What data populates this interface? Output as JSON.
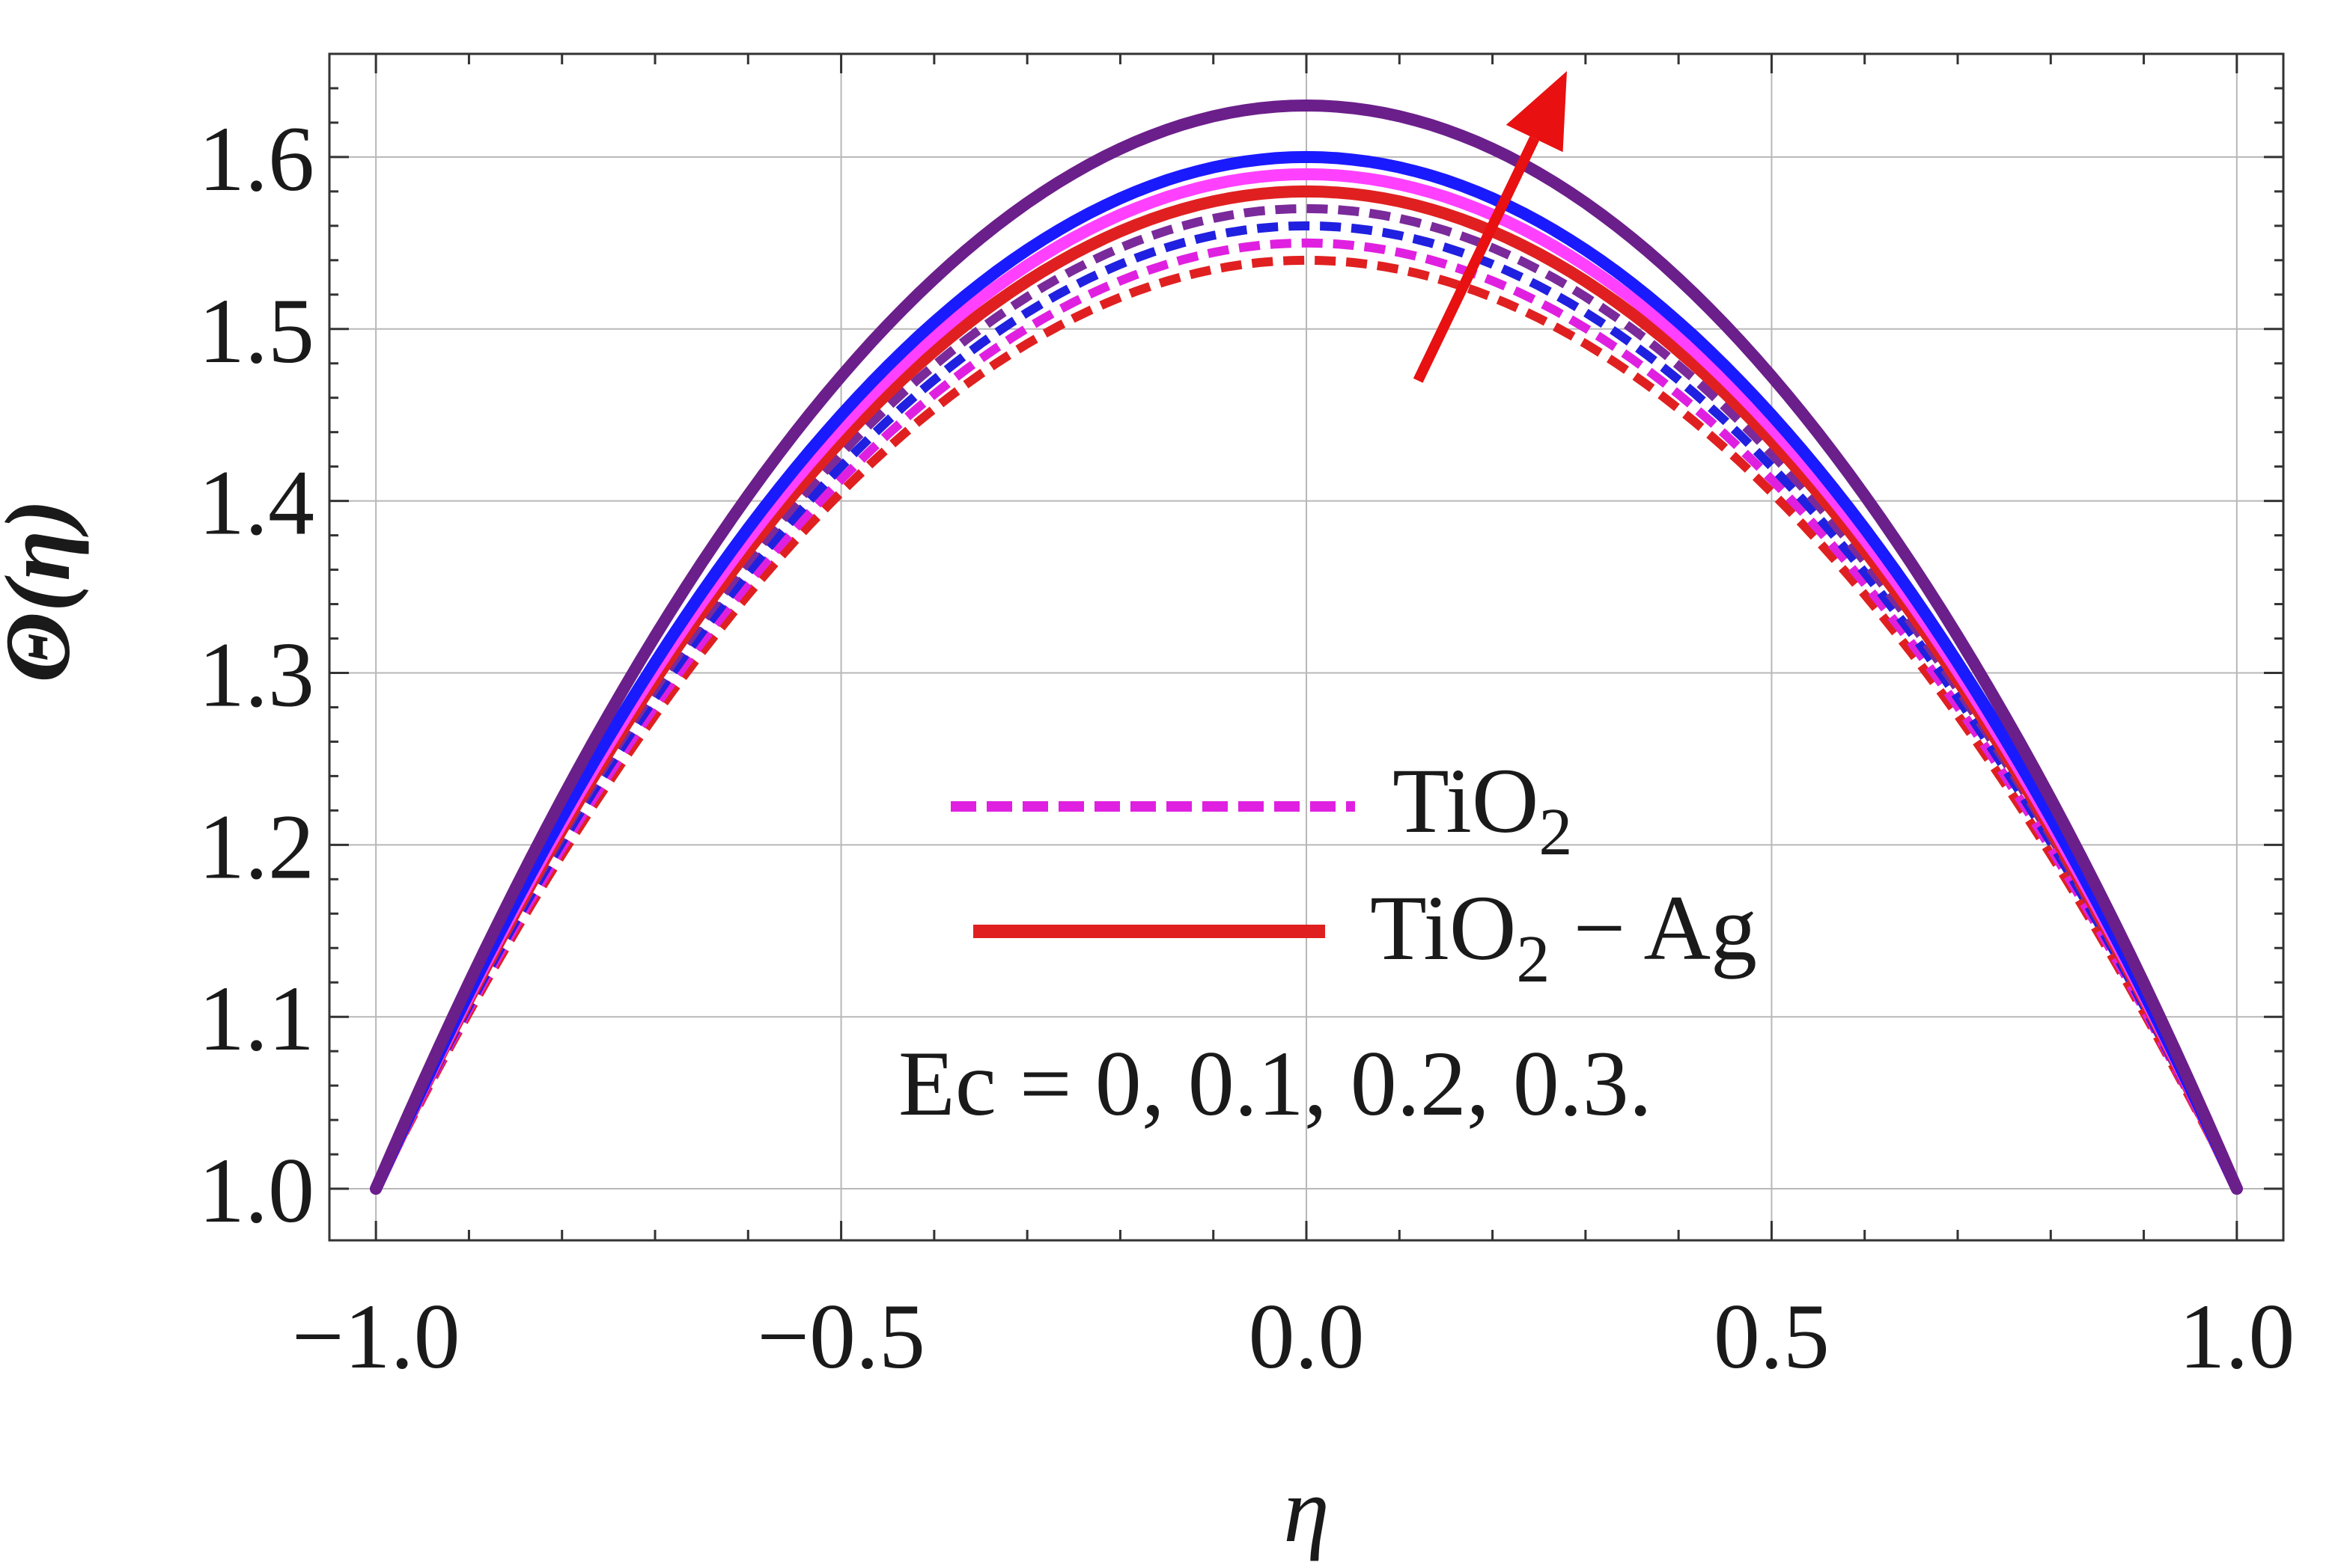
{
  "chart_data": {
    "type": "line",
    "title": "",
    "xlabel": "η",
    "ylabel": "Θ(η)",
    "xlim": [
      -1.05,
      1.05
    ],
    "ylim": [
      0.97,
      1.66
    ],
    "x_ticks": [
      -1.0,
      -0.5,
      0.0,
      0.5,
      1.0
    ],
    "x_tick_labels": [
      "−1.0",
      "−0.5",
      "0.0",
      "0.5",
      "1.0"
    ],
    "y_ticks": [
      1.0,
      1.1,
      1.2,
      1.3,
      1.4,
      1.5,
      1.6
    ],
    "y_tick_labels": [
      "1.0",
      "1.1",
      "1.2",
      "1.3",
      "1.4",
      "1.5",
      "1.6"
    ],
    "grid": true,
    "x_domain": [
      -1.0,
      1.0
    ],
    "series": [
      {
        "name": "TiO2, Ec = 0",
        "style": "dashed",
        "color": "#e02020",
        "peak": 1.54
      },
      {
        "name": "TiO2, Ec = 0.1",
        "style": "dashed",
        "color": "#e020e0",
        "peak": 1.55
      },
      {
        "name": "TiO2, Ec = 0.2",
        "style": "dashed",
        "color": "#2020e0",
        "peak": 1.56
      },
      {
        "name": "TiO2, Ec = 0.3",
        "style": "dashed",
        "color": "#7a2a9a",
        "peak": 1.57
      },
      {
        "name": "TiO2 − Ag, Ec = 0",
        "style": "solid",
        "color": "#e02020",
        "peak": 1.58
      },
      {
        "name": "TiO2 − Ag, Ec = 0.1",
        "style": "solid",
        "color": "#ff40ff",
        "peak": 1.59
      },
      {
        "name": "TiO2 − Ag, Ec = 0.2",
        "style": "solid",
        "color": "#1a1aff",
        "peak": 1.6
      },
      {
        "name": "TiO2 − Ag, Ec = 0.3",
        "style": "solid",
        "color": "#6b1f8a",
        "peak": 1.63
      }
    ],
    "legend": {
      "placement": "center-bottom",
      "entries": [
        {
          "label_main": "TiO",
          "label_sub": "2",
          "label_rest": "",
          "style": "dashed",
          "color": "#e020e0"
        },
        {
          "label_main": "TiO",
          "label_sub": "2",
          "label_rest": " − Ag",
          "style": "solid",
          "color": "#e02020"
        }
      ]
    },
    "annotation": "Ec = 0, 0.1, 0.2, 0.3.",
    "arrow": {
      "label": "increasing Ec",
      "color": "#e81010",
      "from": [
        0.12,
        1.47
      ],
      "to": [
        0.28,
        1.65
      ]
    }
  }
}
